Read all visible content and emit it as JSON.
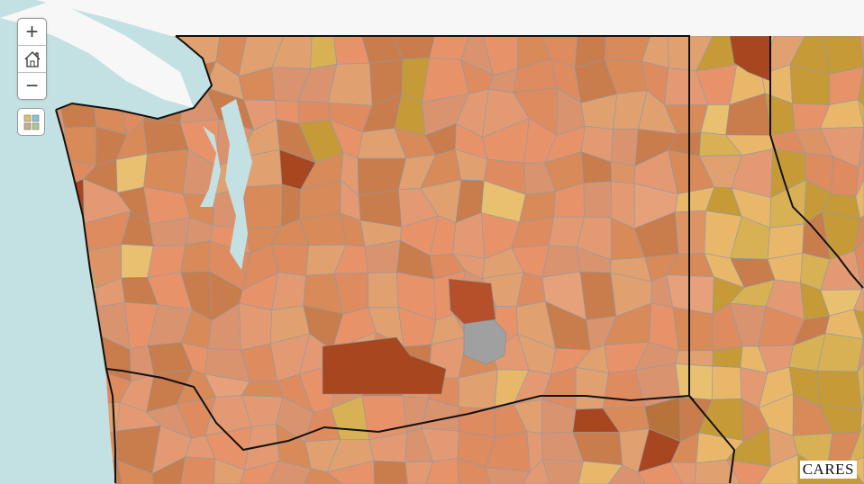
{
  "controls": {
    "zoom_in": "+",
    "zoom_out": "−",
    "home_icon": "home-icon",
    "basemap_icon": "basemap-gallery-icon"
  },
  "logo": "CARES",
  "colors": {
    "water": "#c3e0e3",
    "foreign_land": "#f7f7f7",
    "palette": [
      "#e8926a",
      "#e39a72",
      "#de8b60",
      "#d9946f",
      "#e0a070",
      "#d88a58",
      "#c97c4c",
      "#e9b76a",
      "#c79a38",
      "#d8b154",
      "#b8733a",
      "#a8471f",
      "#e6a07a",
      "#dc9467",
      "#e8c070"
    ],
    "no_data": "#a0a0a0"
  }
}
